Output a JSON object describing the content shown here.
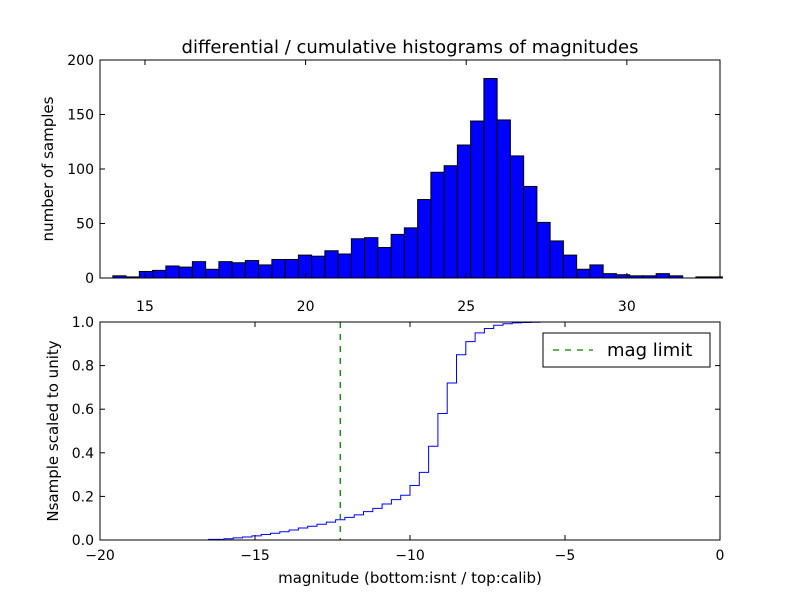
{
  "title": "differential / cumulative histograms of magnitudes",
  "colors": {
    "bars": "#0000ff",
    "cumulative_line": "#0000ff",
    "mag_limit": "#008000"
  },
  "chart_data": [
    {
      "id": "top",
      "type": "bar",
      "title": "differential / cumulative histograms of magnitudes",
      "xlabel": "",
      "ylabel": "number of samples",
      "xlim": [
        13.6,
        32.9
      ],
      "ylim": [
        0,
        200
      ],
      "xticks": [
        15,
        20,
        25,
        30
      ],
      "yticks": [
        0,
        50,
        100,
        150,
        200
      ],
      "bin_start": 14.0,
      "bin_width": 0.4125,
      "values": [
        2,
        1,
        6,
        7,
        11,
        10,
        15,
        8,
        15,
        14,
        16,
        12,
        17,
        17,
        21,
        20,
        25,
        22,
        36,
        37,
        28,
        40,
        46,
        72,
        97,
        103,
        122,
        144,
        183,
        145,
        112,
        84,
        51,
        34,
        21,
        8,
        12,
        4,
        3,
        2,
        2,
        4,
        2,
        0,
        1,
        1
      ]
    },
    {
      "id": "bottom",
      "type": "line",
      "step": true,
      "xlabel": "magnitude (bottom:isnt / top:calib)",
      "ylabel": "Nsample scaled to unity",
      "xlim": [
        -20,
        0
      ],
      "ylim": [
        0,
        1
      ],
      "xticks": [
        -20,
        -15,
        -10,
        -5,
        0
      ],
      "xtick_labels": [
        "−20",
        "−15",
        "−10",
        "−5",
        "0"
      ],
      "yticks": [
        0,
        0.2,
        0.4,
        0.6,
        0.8,
        1.0
      ],
      "ytick_labels": [
        "0.0",
        "0.2",
        "0.4",
        "0.6",
        "0.8",
        "1.0"
      ],
      "mag_limit": -12.25,
      "legend": {
        "label": "mag limit",
        "placement": "top-right"
      },
      "series": [
        {
          "name": "cumulative",
          "x": [
            -20.0,
            -17.0,
            -16.5,
            -16.0,
            -15.7,
            -15.4,
            -15.1,
            -14.8,
            -14.5,
            -14.2,
            -13.9,
            -13.6,
            -13.3,
            -13.0,
            -12.7,
            -12.4,
            -12.1,
            -11.8,
            -11.5,
            -11.2,
            -10.9,
            -10.6,
            -10.3,
            -10.0,
            -9.7,
            -9.4,
            -9.1,
            -8.8,
            -8.5,
            -8.2,
            -7.9,
            -7.6,
            -7.3,
            -7.0,
            -6.7,
            -6.4,
            -6.1,
            -5.8,
            -5.5,
            0.0
          ],
          "y": [
            0.0,
            0.0,
            0.003,
            0.006,
            0.01,
            0.014,
            0.019,
            0.025,
            0.031,
            0.038,
            0.046,
            0.055,
            0.063,
            0.072,
            0.082,
            0.093,
            0.104,
            0.115,
            0.13,
            0.145,
            0.165,
            0.185,
            0.205,
            0.25,
            0.31,
            0.43,
            0.58,
            0.72,
            0.85,
            0.91,
            0.95,
            0.97,
            0.985,
            0.992,
            0.996,
            0.998,
            0.999,
            1.0,
            1.0,
            1.0
          ]
        }
      ]
    }
  ]
}
